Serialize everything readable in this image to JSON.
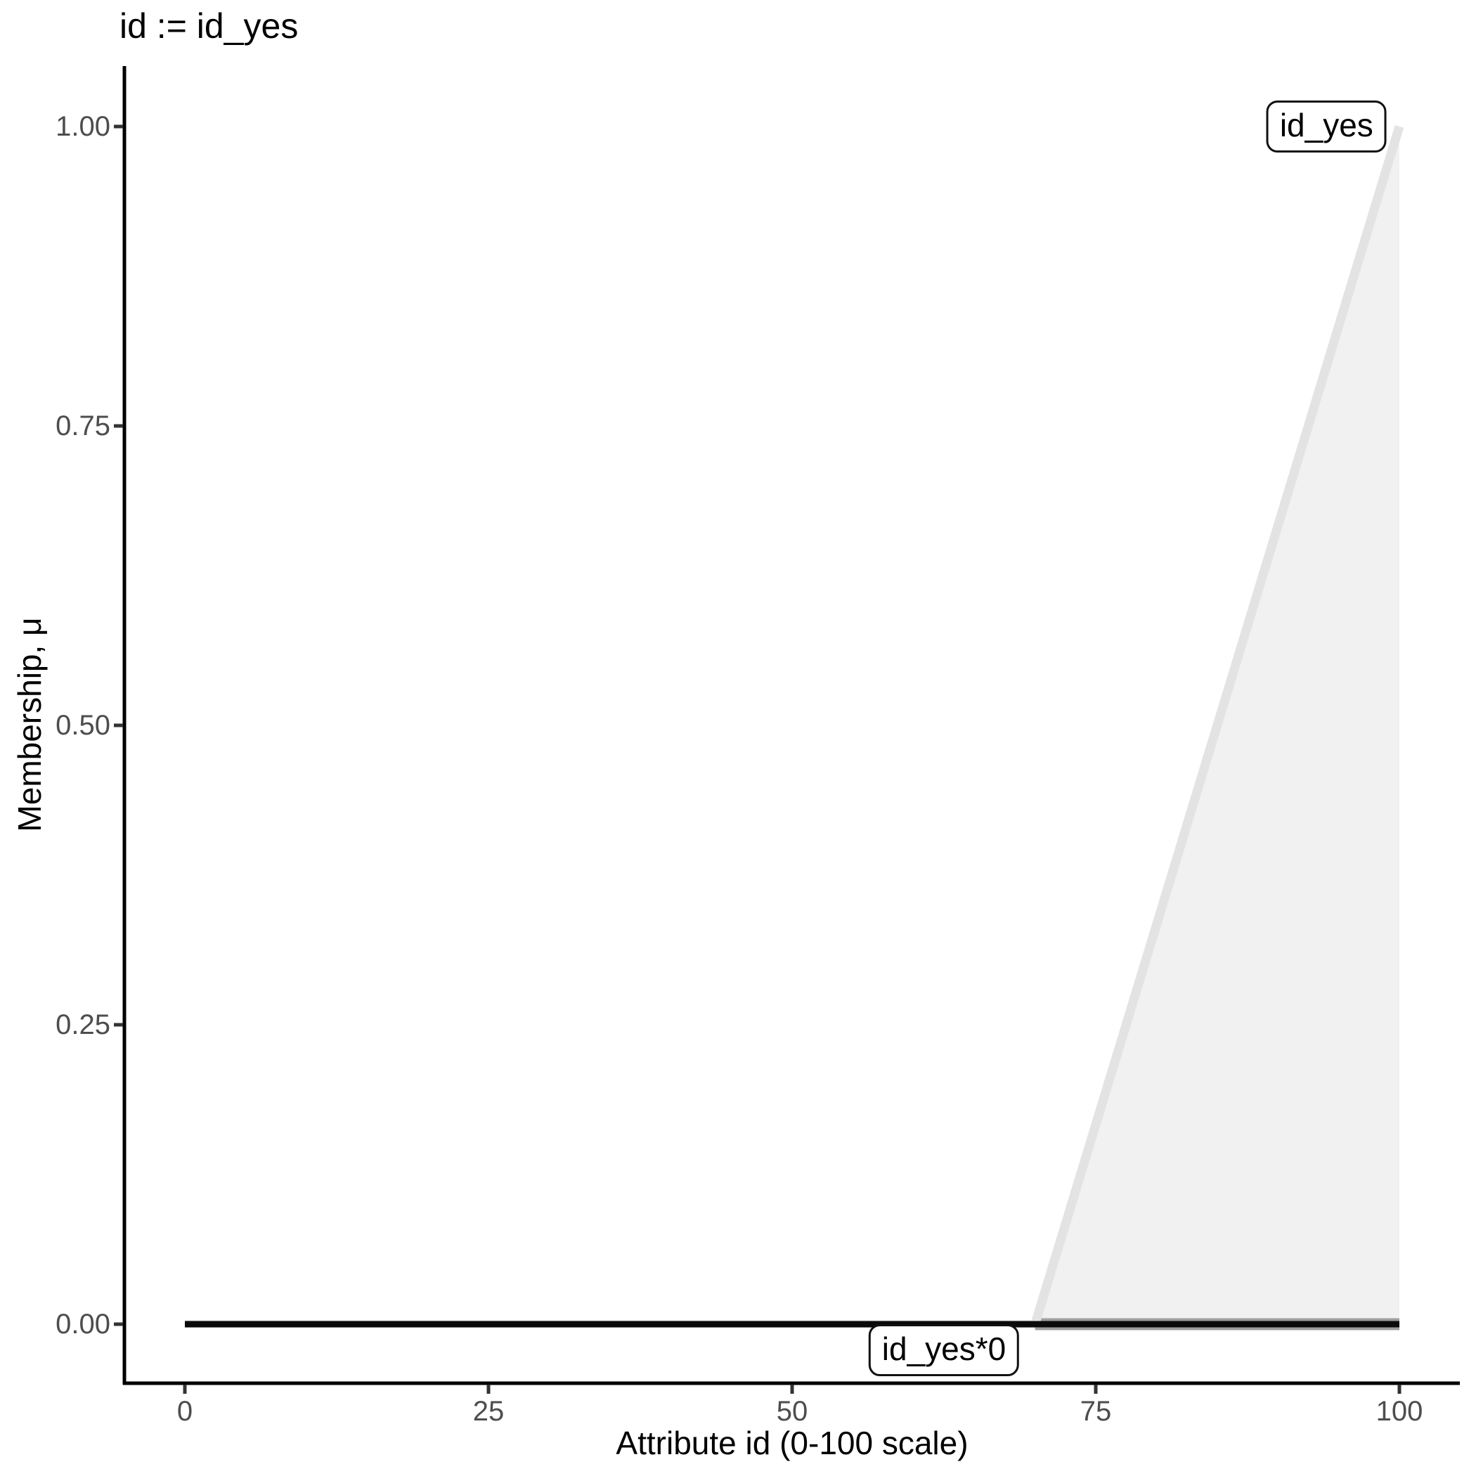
{
  "chart_data": {
    "type": "area",
    "title": "id := id_yes",
    "xlabel": "Attribute id (0-100 scale)",
    "ylabel": "Membership, μ",
    "xlim": [
      0,
      100
    ],
    "ylim": [
      0,
      1
    ],
    "grid": false,
    "legend": "none",
    "x_ticks": {
      "values": [
        0,
        25,
        50,
        75,
        100
      ],
      "labels": [
        "0",
        "25",
        "50",
        "75",
        "100"
      ]
    },
    "y_ticks": {
      "values": [
        0,
        0.25,
        0.5,
        0.75,
        1
      ],
      "labels": [
        "0.00",
        "0.25",
        "0.50",
        "0.75",
        "1.00"
      ]
    },
    "series": [
      {
        "name": "id_yes",
        "kind": "membership-ramp-area",
        "points": [
          [
            70,
            0
          ],
          [
            100,
            1
          ],
          [
            100,
            0
          ]
        ],
        "fill": "#f1f1f1",
        "stroke": "#e3e3e3"
      },
      {
        "name": "id_yes*0",
        "kind": "line",
        "points": [
          [
            0,
            0
          ],
          [
            100,
            0
          ]
        ],
        "stroke": "#0a0a0a"
      }
    ],
    "annotations": [
      {
        "text": "id_yes",
        "x": 94,
        "y": 1.0
      },
      {
        "text": "id_yes*0",
        "x": 62.5,
        "y": -0.022
      }
    ],
    "colors": {
      "background": "#ffffff",
      "axis": "#000000",
      "tick_mark": "#333333",
      "tick_text": "#4d4d4d",
      "area_fill": "#f1f1f1",
      "ramp_line": "#e3e3e3",
      "zero_line": "#0a0a0a",
      "zero_line_halo": "#9e9e9e"
    }
  }
}
